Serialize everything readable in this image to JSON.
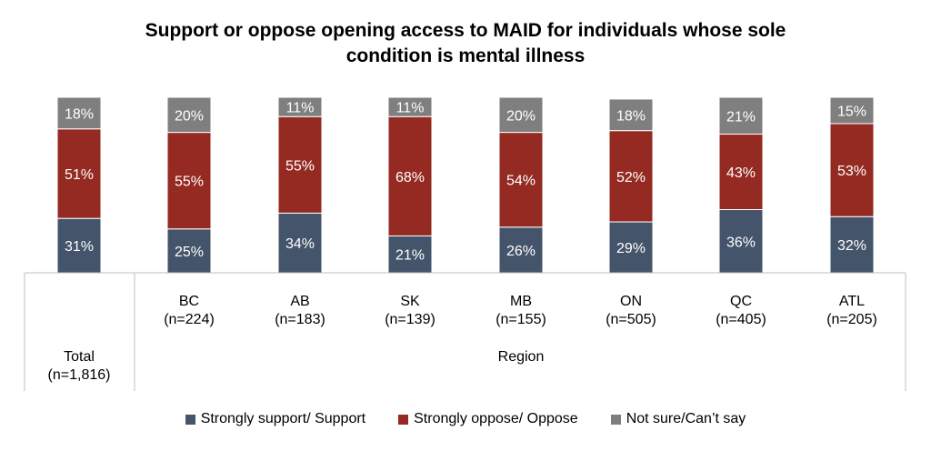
{
  "title": {
    "line1": "Support or oppose opening access to MAID for individuals whose sole",
    "line2": "condition is mental illness"
  },
  "colors": {
    "support": "#44546A",
    "oppose": "#952A22",
    "notsure": "#7F7F7F",
    "axis": "#BFBFBF"
  },
  "chart_data": {
    "type": "bar",
    "stacked": true,
    "percent_stacked": true,
    "categories": [
      {
        "name": "Total",
        "n": "(n=1,816)"
      },
      {
        "name": "BC",
        "n": "(n=224)"
      },
      {
        "name": "AB",
        "n": "(n=183)"
      },
      {
        "name": "SK",
        "n": "(n=139)"
      },
      {
        "name": "MB",
        "n": "(n=155)"
      },
      {
        "name": "ON",
        "n": "(n=505)"
      },
      {
        "name": "QC",
        "n": "(n=405)"
      },
      {
        "name": "ATL",
        "n": "(n=205)"
      }
    ],
    "group_label": "Region",
    "series": [
      {
        "name": "Strongly support/ Support",
        "values": [
          31,
          25,
          34,
          21,
          26,
          29,
          36,
          32
        ],
        "labels": [
          "31%",
          "25%",
          "34%",
          "21%",
          "26%",
          "29%",
          "36%",
          "32%"
        ]
      },
      {
        "name": "Strongly oppose/ Oppose",
        "values": [
          51,
          55,
          55,
          68,
          54,
          52,
          43,
          53
        ],
        "labels": [
          "51%",
          "55%",
          "55%",
          "68%",
          "54%",
          "52%",
          "43%",
          "53%"
        ]
      },
      {
        "name": "Not sure/Can’t say",
        "values": [
          18,
          20,
          11,
          11,
          20,
          18,
          21,
          15
        ],
        "labels": [
          "18%",
          "20%",
          "11%",
          "11%",
          "20%",
          "18%",
          "21%",
          "15%"
        ]
      }
    ],
    "ylim": [
      0,
      100
    ],
    "legend_position": "bottom"
  }
}
